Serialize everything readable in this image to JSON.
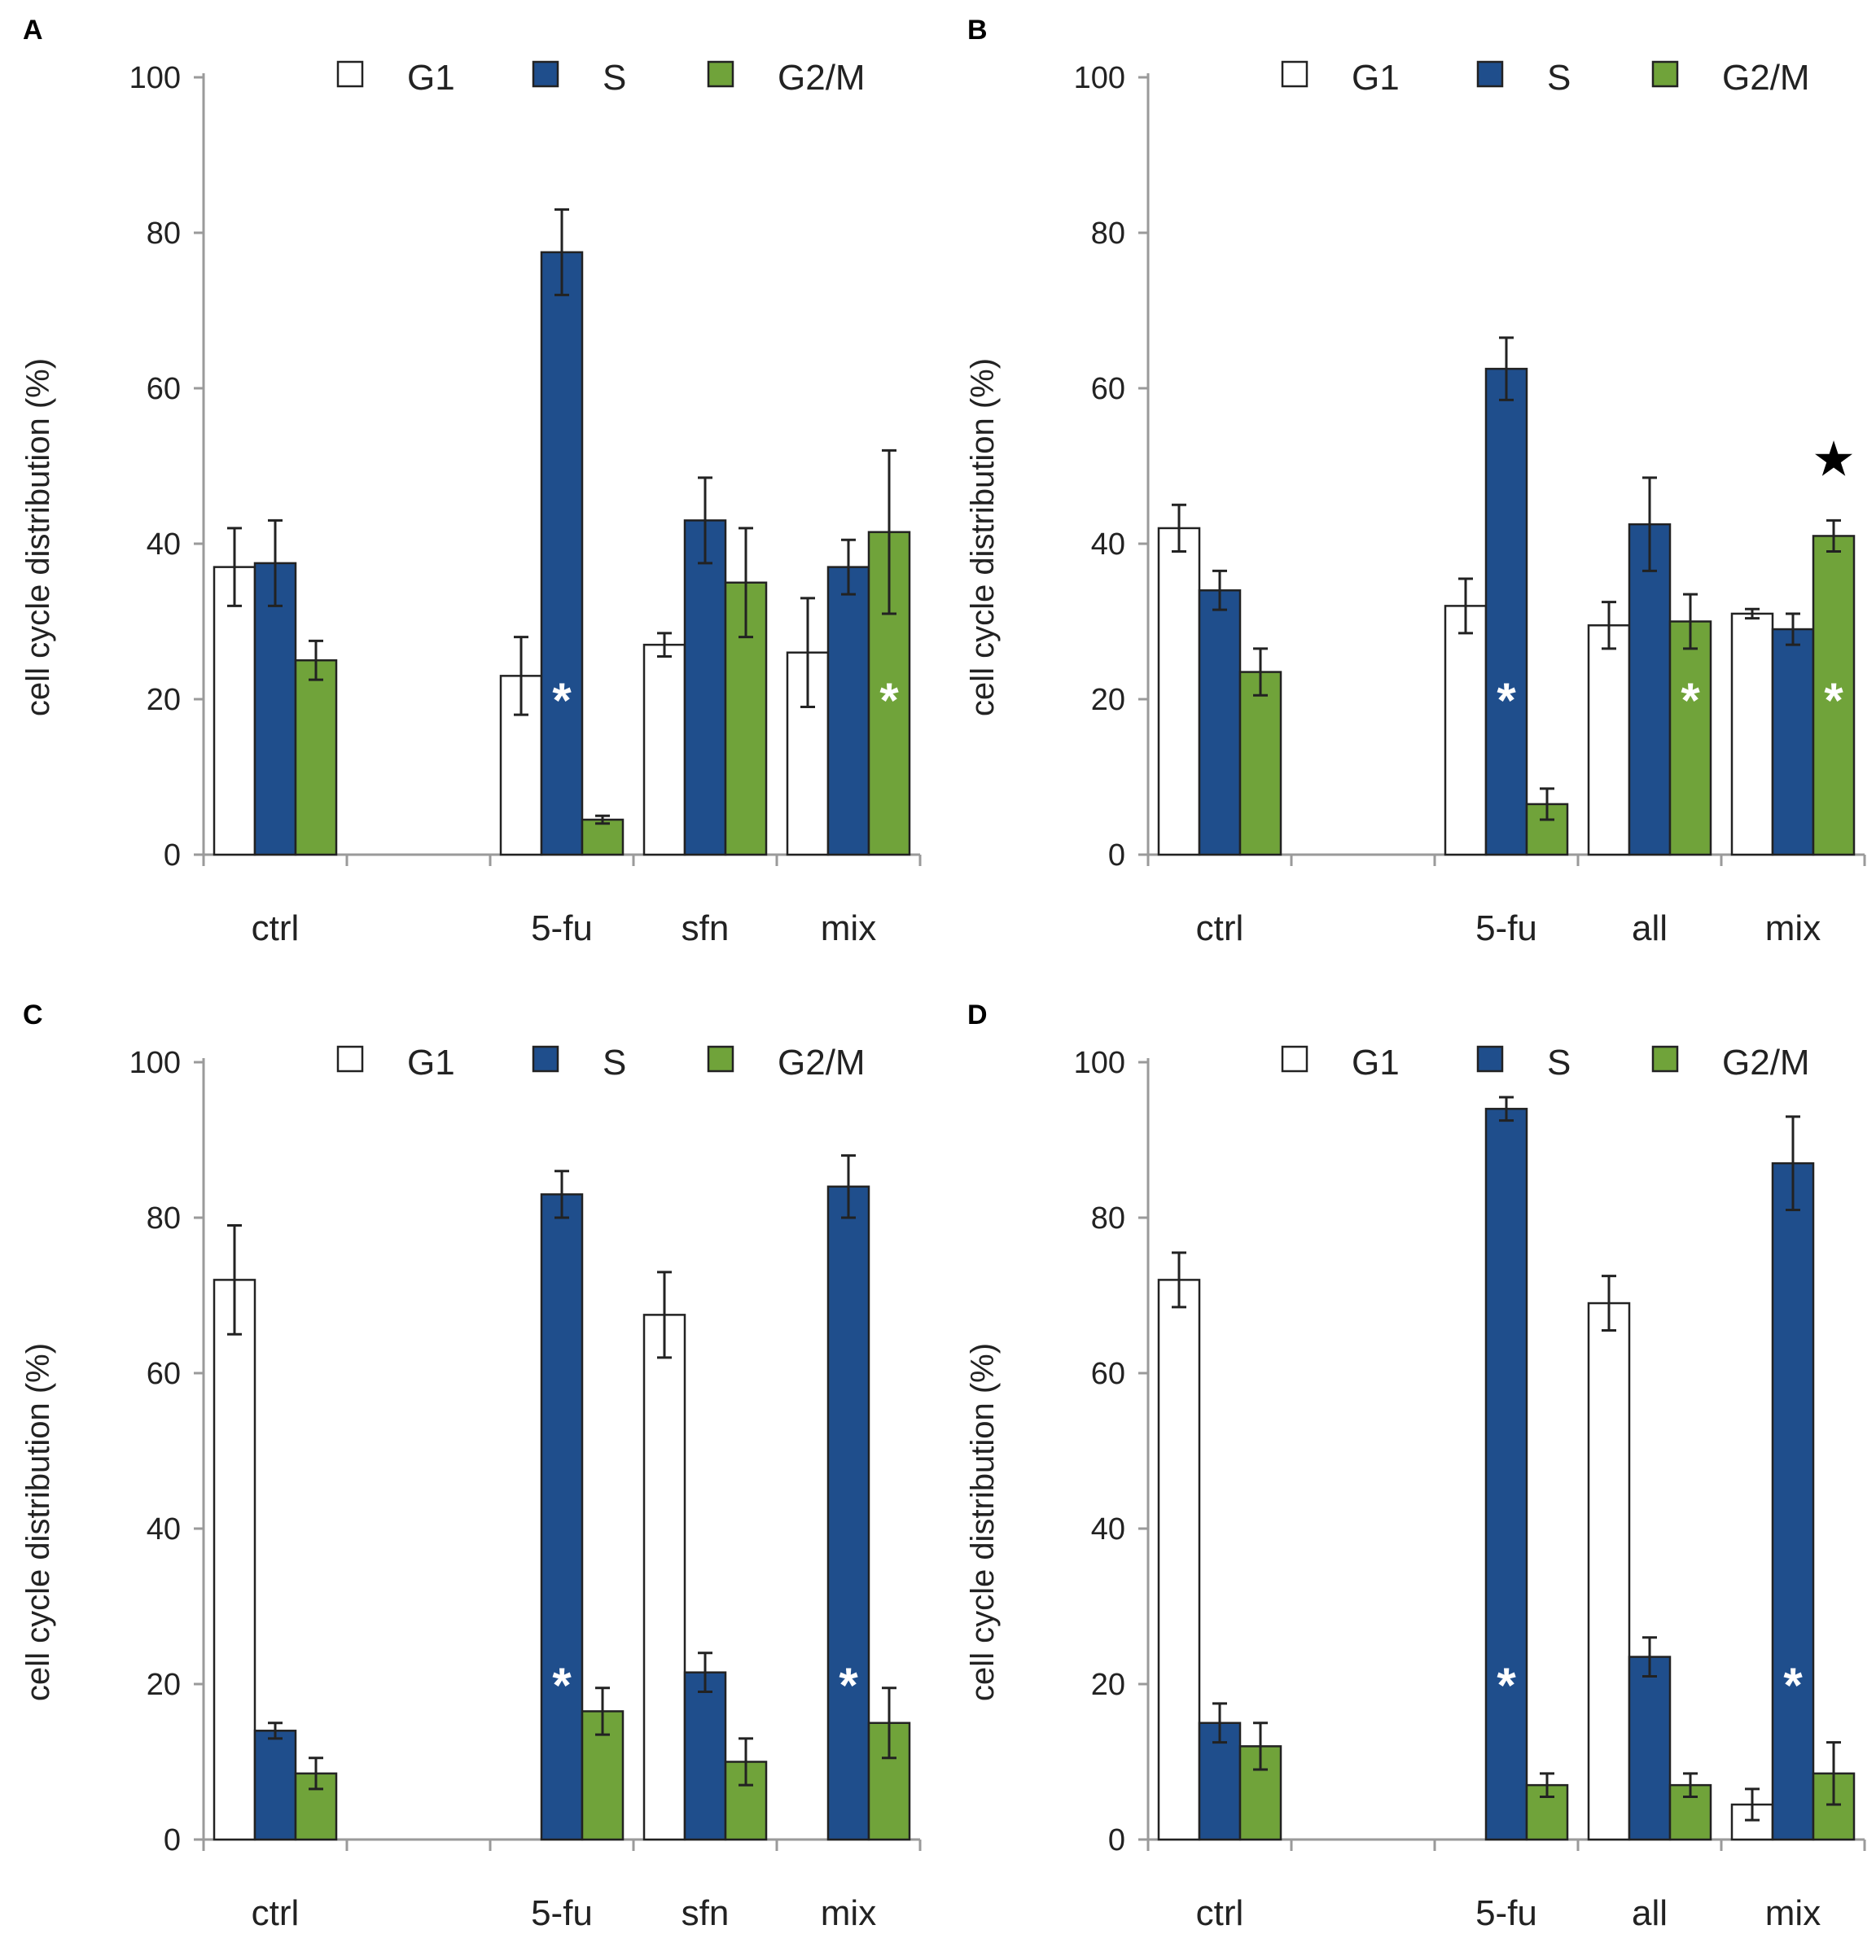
{
  "figure": {
    "colors": {
      "G1": "#ffffff",
      "S": "#1f4e8c",
      "G2/M": "#70a33a",
      "sig_on_dark": "#ffffff",
      "axis": "#9a9a9a"
    }
  },
  "chart_data": [
    {
      "panel": "A",
      "type": "bar",
      "ylabel": "cell cycle distribution (%)",
      "ylim": [
        0,
        100
      ],
      "yticks": [
        0,
        20,
        40,
        60,
        80,
        100
      ],
      "legend": [
        "G1",
        "S",
        "G2/M"
      ],
      "categories": [
        "ctrl",
        "",
        "5-fu",
        "sfn",
        "mix"
      ],
      "series": [
        {
          "name": "G1",
          "values": [
            37,
            null,
            23,
            27,
            26
          ],
          "errors": [
            5,
            null,
            5,
            1.5,
            7
          ]
        },
        {
          "name": "S",
          "values": [
            37.5,
            null,
            77.5,
            43,
            37
          ],
          "errors": [
            5.5,
            null,
            5.5,
            5.5,
            3.5
          ]
        },
        {
          "name": "G2/M",
          "values": [
            25,
            null,
            4.5,
            35,
            41.5
          ],
          "errors": [
            2.5,
            null,
            0.5,
            7,
            10.5
          ]
        }
      ],
      "significance": [
        {
          "category": "5-fu",
          "series": "S",
          "marker": "*"
        },
        {
          "category": "mix",
          "series": "G2/M",
          "marker": "*"
        }
      ]
    },
    {
      "panel": "B",
      "type": "bar",
      "ylabel": "cell cycle distribution (%)",
      "ylim": [
        0,
        100
      ],
      "yticks": [
        0,
        20,
        40,
        60,
        80,
        100
      ],
      "legend": [
        "G1",
        "S",
        "G2/M"
      ],
      "categories": [
        "ctrl",
        "",
        "5-fu",
        "all",
        "mix"
      ],
      "series": [
        {
          "name": "G1",
          "values": [
            42,
            null,
            32,
            29.5,
            31
          ],
          "errors": [
            3,
            null,
            3.5,
            3,
            0.6
          ]
        },
        {
          "name": "S",
          "values": [
            34,
            null,
            62.5,
            42.5,
            29
          ],
          "errors": [
            2.5,
            null,
            4,
            6,
            2
          ]
        },
        {
          "name": "G2/M",
          "values": [
            23.5,
            null,
            6.5,
            30,
            41
          ],
          "errors": [
            3,
            null,
            2,
            3.5,
            2
          ]
        }
      ],
      "significance": [
        {
          "category": "5-fu",
          "series": "S",
          "marker": "*"
        },
        {
          "category": "all",
          "series": "G2/M",
          "marker": "*"
        },
        {
          "category": "mix",
          "series": "G2/M",
          "marker": "*"
        },
        {
          "category": "mix",
          "series": "G2/M",
          "marker": "★"
        }
      ]
    },
    {
      "panel": "C",
      "type": "bar",
      "ylabel": "cell cycle distribution (%)",
      "ylim": [
        0,
        100
      ],
      "yticks": [
        0,
        20,
        40,
        60,
        80,
        100
      ],
      "legend": [
        "G1",
        "S",
        "G2/M"
      ],
      "categories": [
        "ctrl",
        "",
        "5-fu",
        "sfn",
        "mix"
      ],
      "series": [
        {
          "name": "G1",
          "values": [
            72,
            null,
            0,
            67.5,
            0
          ],
          "errors": [
            7,
            null,
            0,
            5.5,
            0
          ]
        },
        {
          "name": "S",
          "values": [
            14,
            null,
            83,
            21.5,
            84
          ],
          "errors": [
            1,
            null,
            3,
            2.5,
            4
          ]
        },
        {
          "name": "G2/M",
          "values": [
            8.5,
            null,
            16.5,
            10,
            15
          ],
          "errors": [
            2,
            null,
            3,
            3,
            4.5
          ]
        }
      ],
      "significance": [
        {
          "category": "5-fu",
          "series": "S",
          "marker": "*"
        },
        {
          "category": "mix",
          "series": "S",
          "marker": "*"
        }
      ]
    },
    {
      "panel": "D",
      "type": "bar",
      "ylabel": "cell cycle distribution (%)",
      "ylim": [
        0,
        100
      ],
      "yticks": [
        0,
        20,
        40,
        60,
        80,
        100
      ],
      "legend": [
        "G1",
        "S",
        "G2/M"
      ],
      "categories": [
        "ctrl",
        "",
        "5-fu",
        "all",
        "mix"
      ],
      "series": [
        {
          "name": "G1",
          "values": [
            72,
            null,
            0,
            69,
            4.5
          ],
          "errors": [
            3.5,
            null,
            0,
            3.5,
            2
          ]
        },
        {
          "name": "S",
          "values": [
            15,
            null,
            94,
            23.5,
            87
          ],
          "errors": [
            2.5,
            null,
            1.5,
            2.5,
            6
          ]
        },
        {
          "name": "G2/M",
          "values": [
            12,
            null,
            7,
            7,
            8.5
          ],
          "errors": [
            3,
            null,
            1.5,
            1.5,
            4
          ]
        }
      ],
      "significance": [
        {
          "category": "5-fu",
          "series": "S",
          "marker": "*"
        },
        {
          "category": "mix",
          "series": "S",
          "marker": "*"
        }
      ]
    }
  ]
}
